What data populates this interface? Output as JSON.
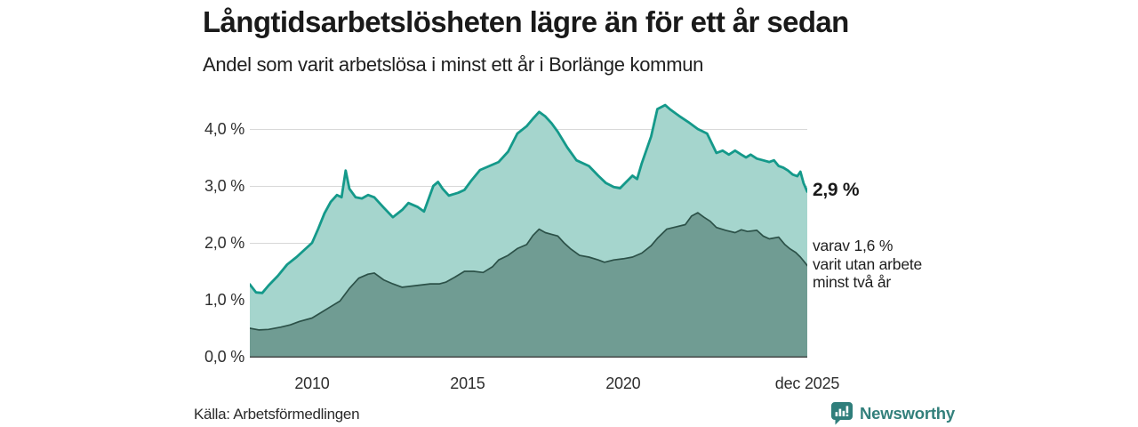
{
  "header": {
    "title": "Långtidsarbetslösheten lägre än för ett år sedan",
    "subtitle": "Andel som varit arbetslösa i minst ett år i Borlänge kommun"
  },
  "annotations": {
    "end_value_primary": "2,9 %",
    "end_note_lines": [
      "varav 1,6 %",
      "varit utan arbete",
      "minst två år"
    ]
  },
  "footer": {
    "source": "Källa: Arbetsförmedlingen",
    "brand": "Newsworthy"
  },
  "colors": {
    "primary_line": "#14998a",
    "primary_fill": "#a5d5cd",
    "secondary_line": "#2c5148",
    "secondary_fill": "#709c93",
    "gridline": "#d8d8d8",
    "axis": "#3d3d3d",
    "brand_teal": "#2f7e7b"
  },
  "chart_data": {
    "type": "area",
    "title": "Långtidsarbetslösheten lägre än för ett år sedan",
    "subtitle": "Andel som varit arbetslösa i minst ett år i Borlänge kommun",
    "xlabel": "",
    "ylabel": "",
    "x_unit": "decimal_year",
    "x_range": [
      2008.0,
      2025.92
    ],
    "ylim": [
      0,
      4.7
    ],
    "grid": "horizontal",
    "legend_position": "none",
    "yticks": [
      0,
      1,
      2,
      3,
      4
    ],
    "ytick_labels": [
      "0,0 %",
      "1,0 %",
      "2,0 %",
      "3,0 %",
      "4,0 %"
    ],
    "xticks": [
      2010,
      2015,
      2020,
      2025.92
    ],
    "xtick_labels": [
      "2010",
      "2015",
      "2020",
      "dec 2025"
    ],
    "series": [
      {
        "name": "Arbetslösa minst ett år",
        "end_label": "2,9 %",
        "end_value": 2.9,
        "color": "#14998a",
        "fill": "#a5d5cd",
        "stroke_width": 2.8,
        "x": [
          2008.0,
          2008.2,
          2008.4,
          2008.6,
          2008.9,
          2009.2,
          2009.5,
          2009.8,
          2010.0,
          2010.2,
          2010.4,
          2010.6,
          2010.8,
          2010.95,
          2011.08,
          2011.2,
          2011.4,
          2011.6,
          2011.8,
          2012.0,
          2012.3,
          2012.6,
          2012.9,
          2013.1,
          2013.4,
          2013.6,
          2013.9,
          2014.05,
          2014.2,
          2014.4,
          2014.7,
          2014.9,
          2015.1,
          2015.4,
          2015.7,
          2016.0,
          2016.3,
          2016.6,
          2016.9,
          2017.1,
          2017.3,
          2017.5,
          2017.7,
          2017.9,
          2018.2,
          2018.5,
          2018.9,
          2019.2,
          2019.45,
          2019.7,
          2019.9,
          2020.1,
          2020.3,
          2020.45,
          2020.6,
          2020.9,
          2021.1,
          2021.35,
          2021.5,
          2021.8,
          2022.1,
          2022.4,
          2022.7,
          2023.0,
          2023.2,
          2023.4,
          2023.6,
          2023.8,
          2023.95,
          2024.1,
          2024.3,
          2024.5,
          2024.7,
          2024.85,
          2025.0,
          2025.15,
          2025.3,
          2025.45,
          2025.6,
          2025.7,
          2025.8,
          2025.92
        ],
        "y": [
          1.27,
          1.13,
          1.12,
          1.25,
          1.42,
          1.62,
          1.75,
          1.9,
          2.0,
          2.25,
          2.52,
          2.72,
          2.84,
          2.8,
          3.27,
          2.95,
          2.8,
          2.78,
          2.84,
          2.8,
          2.62,
          2.45,
          2.58,
          2.7,
          2.63,
          2.55,
          3.0,
          3.07,
          2.95,
          2.83,
          2.88,
          2.93,
          3.08,
          3.28,
          3.35,
          3.42,
          3.6,
          3.92,
          4.05,
          4.18,
          4.3,
          4.22,
          4.1,
          3.95,
          3.68,
          3.45,
          3.35,
          3.18,
          3.05,
          2.98,
          2.96,
          3.07,
          3.18,
          3.12,
          3.4,
          3.87,
          4.35,
          4.42,
          4.35,
          4.23,
          4.12,
          4.0,
          3.92,
          3.58,
          3.62,
          3.55,
          3.62,
          3.55,
          3.5,
          3.55,
          3.48,
          3.45,
          3.42,
          3.45,
          3.35,
          3.32,
          3.27,
          3.2,
          3.17,
          3.25,
          3.05,
          2.9
        ]
      },
      {
        "name": "Utan arbete minst två år",
        "end_label": "varav 1,6 % varit utan arbete minst två år",
        "end_value": 1.6,
        "color": "#2c5148",
        "fill": "#709c93",
        "stroke_width": 1.7,
        "x": [
          2008.0,
          2008.3,
          2008.6,
          2009.0,
          2009.3,
          2009.6,
          2010.0,
          2010.3,
          2010.6,
          2010.9,
          2011.2,
          2011.5,
          2011.8,
          2012.0,
          2012.3,
          2012.6,
          2012.9,
          2013.2,
          2013.5,
          2013.8,
          2014.1,
          2014.3,
          2014.6,
          2014.9,
          2015.2,
          2015.5,
          2015.8,
          2016.0,
          2016.3,
          2016.6,
          2016.9,
          2017.1,
          2017.3,
          2017.5,
          2017.7,
          2017.9,
          2018.1,
          2018.3,
          2018.6,
          2018.9,
          2019.2,
          2019.4,
          2019.7,
          2020.0,
          2020.3,
          2020.6,
          2020.9,
          2021.1,
          2021.4,
          2021.7,
          2022.0,
          2022.2,
          2022.4,
          2022.6,
          2022.8,
          2023.0,
          2023.3,
          2023.6,
          2023.8,
          2024.0,
          2024.3,
          2024.5,
          2024.7,
          2025.0,
          2025.2,
          2025.35,
          2025.55,
          2025.7,
          2025.85,
          2025.92
        ],
        "y": [
          0.5,
          0.47,
          0.48,
          0.52,
          0.56,
          0.62,
          0.68,
          0.78,
          0.88,
          0.98,
          1.2,
          1.38,
          1.45,
          1.47,
          1.35,
          1.28,
          1.22,
          1.24,
          1.26,
          1.28,
          1.28,
          1.31,
          1.4,
          1.5,
          1.5,
          1.48,
          1.58,
          1.7,
          1.78,
          1.9,
          1.97,
          2.13,
          2.24,
          2.18,
          2.15,
          2.12,
          2.0,
          1.9,
          1.78,
          1.75,
          1.7,
          1.66,
          1.7,
          1.72,
          1.75,
          1.82,
          1.95,
          2.08,
          2.24,
          2.28,
          2.32,
          2.47,
          2.53,
          2.45,
          2.38,
          2.27,
          2.22,
          2.18,
          2.23,
          2.2,
          2.22,
          2.12,
          2.07,
          2.1,
          1.97,
          1.9,
          1.83,
          1.75,
          1.65,
          1.6
        ]
      }
    ]
  }
}
